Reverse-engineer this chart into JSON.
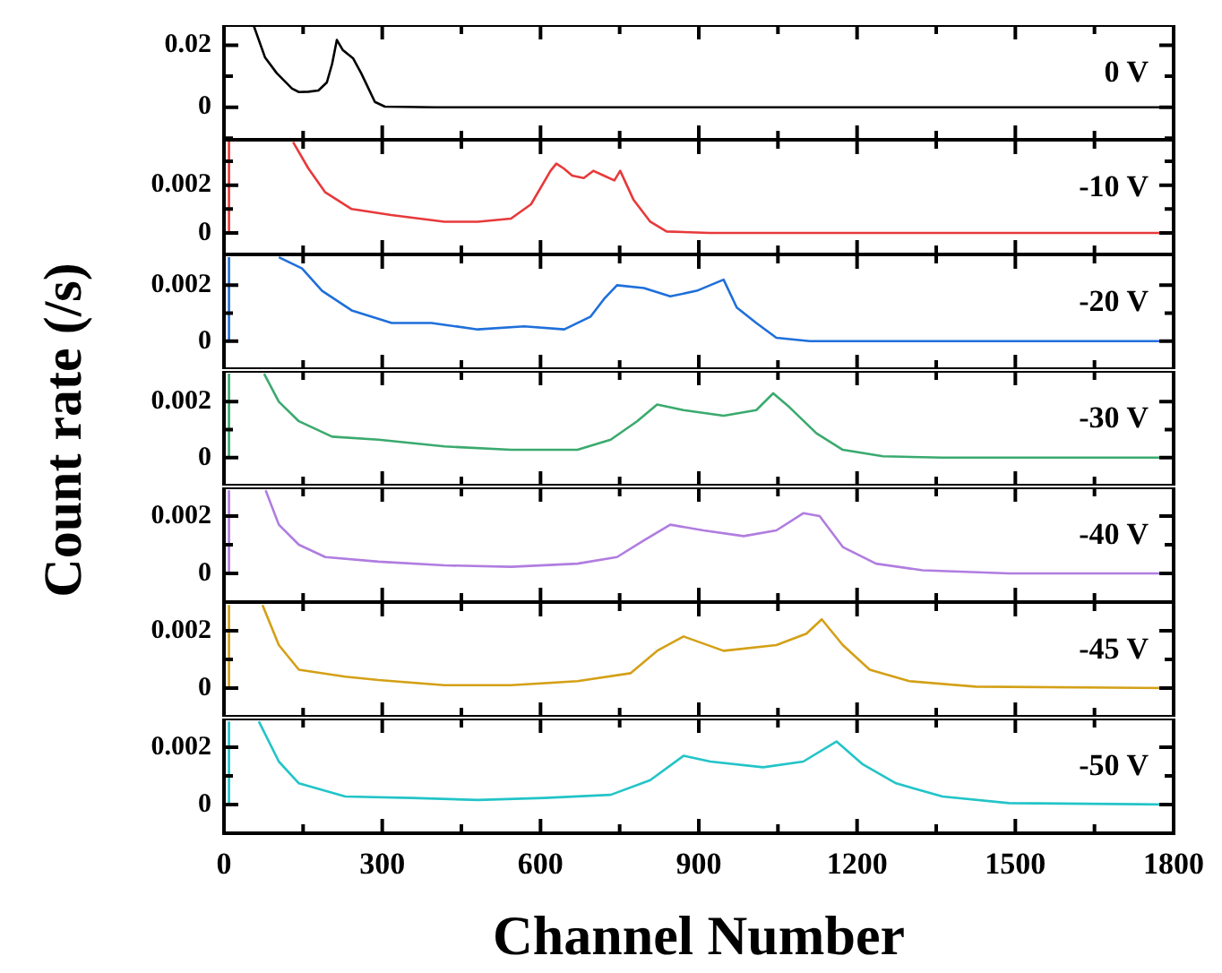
{
  "chart_data": [
    {
      "type": "line",
      "color": "#000000",
      "x": [
        56,
        78,
        100,
        129,
        142,
        160,
        179,
        195,
        205,
        214,
        225,
        245,
        260,
        271,
        286,
        305,
        400,
        1800
      ],
      "values": [
        0.0265,
        0.016,
        0.011,
        0.006,
        0.0049,
        0.005,
        0.0054,
        0.008,
        0.014,
        0.0217,
        0.0185,
        0.0157,
        0.011,
        0.0071,
        0.0017,
        0.0002,
        0,
        0
      ],
      "xlim": [
        0,
        1800
      ],
      "xticks": [
        0,
        {
          "value": 150,
          "label": null
        },
        300,
        {
          "value": 450,
          "label": null
        },
        600,
        {
          "value": 750,
          "label": null
        },
        900,
        {
          "value": 1050,
          "label": null
        },
        1200,
        {
          "value": 1350,
          "label": null
        },
        1500,
        {
          "value": 1650,
          "label": null
        },
        1800
      ],
      "ylim": [
        -0.0105,
        0.0265
      ],
      "yticks": [
        {
          "value": -0.01,
          "label": null
        },
        0,
        {
          "value": 0.01,
          "label": null
        },
        0.02
      ],
      "tick_labels": "y",
      "annotations": [
        "0 V"
      ]
    },
    {
      "type": "line",
      "color": "#e8393a",
      "x": [
        8,
        9,
        10,
        60,
        131,
        160,
        192,
        242,
        317,
        418,
        481,
        544,
        582,
        619,
        630,
        644,
        660,
        682,
        700,
        720,
        740,
        751,
        776,
        808,
        839,
        921,
        1800
      ],
      "values": [
        0,
        0,
        0.0039,
        null,
        0.0038,
        0.0027,
        0.0017,
        0.001,
        0.00075,
        0.00047,
        0.00047,
        0.0006,
        0.0012,
        0.0026,
        0.0029,
        0.0027,
        0.0024,
        0.0023,
        0.0026,
        0.0024,
        0.0022,
        0.0026,
        0.0014,
        0.00047,
        6e-05,
        0,
        0
      ],
      "xlim": [
        0,
        1800
      ],
      "xticks": [
        0,
        {
          "value": 150,
          "label": null
        },
        300,
        {
          "value": 450,
          "label": null
        },
        600,
        {
          "value": 750,
          "label": null
        },
        900,
        {
          "value": 1050,
          "label": null
        },
        1200,
        {
          "value": 1350,
          "label": null
        },
        1500,
        {
          "value": 1650,
          "label": null
        },
        1800
      ],
      "ylim": [
        -0.0009,
        0.0039
      ],
      "yticks": [
        0,
        {
          "value": 0.001,
          "label": null
        },
        0.002,
        {
          "value": 0.003,
          "label": null
        }
      ],
      "tick_labels": "y",
      "annotations": [
        "-10 V"
      ]
    },
    {
      "type": "line",
      "color": "#1f6fdb",
      "x": [
        8,
        9,
        10,
        50,
        104,
        148,
        186,
        242,
        318,
        393,
        481,
        569,
        645,
        695,
        720,
        745,
        796,
        846,
        896,
        947,
        972,
        1009,
        1047,
        1110,
        1800
      ],
      "values": [
        0,
        0,
        0.003,
        null,
        0.003,
        0.0026,
        0.0018,
        0.0011,
        0.00065,
        0.00065,
        0.00042,
        0.00053,
        0.00042,
        0.00088,
        0.0015,
        0.002,
        0.0019,
        0.0016,
        0.0018,
        0.0022,
        0.0012,
        0.00065,
        0.00012,
        0,
        0
      ],
      "xlim": [
        0,
        1800
      ],
      "xticks": [
        0,
        {
          "value": 150,
          "label": null
        },
        300,
        {
          "value": 450,
          "label": null
        },
        600,
        {
          "value": 750,
          "label": null
        },
        900,
        {
          "value": 1050,
          "label": null
        },
        1200,
        {
          "value": 1350,
          "label": null
        },
        1500,
        {
          "value": 1650,
          "label": null
        },
        1800
      ],
      "ylim": [
        -0.001,
        0.0031
      ],
      "yticks": [
        0,
        {
          "value": 0.001,
          "label": null
        },
        0.002
      ],
      "tick_labels": "y",
      "annotations": [
        "-20 V"
      ]
    },
    {
      "type": "line",
      "color": "#3aaa6e",
      "x": [
        8,
        9,
        10,
        40,
        76,
        104,
        142,
        205,
        293,
        418,
        544,
        670,
        733,
        783,
        821,
        871,
        947,
        1009,
        1041,
        1072,
        1123,
        1173,
        1249,
        1362,
        1800
      ],
      "values": [
        0,
        0,
        0.003,
        null,
        0.003,
        0.002,
        0.0013,
        0.00075,
        0.00064,
        0.0004,
        0.00028,
        0.00028,
        0.00064,
        0.0013,
        0.0019,
        0.0017,
        0.0015,
        0.0017,
        0.0023,
        0.0018,
        0.00087,
        0.00028,
        5e-05,
        0,
        0
      ],
      "xlim": [
        0,
        1800
      ],
      "xticks": [
        0,
        {
          "value": 150,
          "label": null
        },
        300,
        {
          "value": 450,
          "label": null
        },
        600,
        {
          "value": 750,
          "label": null
        },
        900,
        {
          "value": 1050,
          "label": null
        },
        1200,
        {
          "value": 1350,
          "label": null
        },
        1500,
        {
          "value": 1650,
          "label": null
        },
        1800
      ],
      "ylim": [
        -0.001,
        0.0031
      ],
      "yticks": [
        0,
        {
          "value": 0.001,
          "label": null
        },
        0.002
      ],
      "tick_labels": "y",
      "ylabel": "Count rate (/s)",
      "annotations": [
        "-30 V"
      ]
    },
    {
      "type": "line",
      "color": "#b07de0",
      "x": [
        8,
        9,
        10,
        40,
        79,
        104,
        142,
        192,
        293,
        418,
        544,
        670,
        745,
        796,
        846,
        909,
        985,
        1047,
        1098,
        1129,
        1173,
        1236,
        1324,
        1488,
        1800
      ],
      "values": [
        0,
        0,
        0.0029,
        null,
        0.0029,
        0.0017,
        0.001,
        0.00057,
        0.00041,
        0.00028,
        0.00023,
        0.00034,
        0.00057,
        0.00115,
        0.0017,
        0.0015,
        0.0013,
        0.0015,
        0.0021,
        0.002,
        0.00092,
        0.00034,
        0.00011,
        0,
        0
      ],
      "xlim": [
        0,
        1800
      ],
      "xticks": [
        0,
        {
          "value": 150,
          "label": null
        },
        300,
        {
          "value": 450,
          "label": null
        },
        600,
        {
          "value": 750,
          "label": null
        },
        900,
        {
          "value": 1050,
          "label": null
        },
        1200,
        {
          "value": 1350,
          "label": null
        },
        1500,
        {
          "value": 1650,
          "label": null
        },
        1800
      ],
      "ylim": [
        -0.001,
        0.003
      ],
      "yticks": [
        0,
        {
          "value": 0.001,
          "label": null
        },
        0.002
      ],
      "tick_labels": "y",
      "annotations": [
        "-40 V"
      ]
    },
    {
      "type": "line",
      "color": "#d4a017",
      "x": [
        8,
        9,
        10,
        40,
        73,
        104,
        142,
        230,
        293,
        418,
        544,
        670,
        771,
        821,
        871,
        947,
        1047,
        1104,
        1133,
        1173,
        1224,
        1299,
        1425,
        1800
      ],
      "values": [
        0,
        0,
        0.0029,
        null,
        0.0029,
        0.0015,
        0.00064,
        0.0004,
        0.00028,
        0.0001,
        0.0001,
        0.00024,
        0.00052,
        0.0013,
        0.0018,
        0.0013,
        0.0015,
        0.0019,
        0.0024,
        0.0015,
        0.00064,
        0.00024,
        5e-05,
        0
      ],
      "xlim": [
        0,
        1800
      ],
      "xticks": [
        0,
        {
          "value": 150,
          "label": null
        },
        300,
        {
          "value": 450,
          "label": null
        },
        600,
        {
          "value": 750,
          "label": null
        },
        900,
        {
          "value": 1050,
          "label": null
        },
        1200,
        {
          "value": 1350,
          "label": null
        },
        1500,
        {
          "value": 1650,
          "label": null
        },
        1800
      ],
      "ylim": [
        -0.001,
        0.003
      ],
      "yticks": [
        0,
        {
          "value": 0.001,
          "label": null
        },
        0.002
      ],
      "tick_labels": "y",
      "annotations": [
        "-45 V"
      ]
    },
    {
      "type": "line",
      "color": "#22c4c8",
      "x": [
        8,
        9,
        10,
        35,
        66,
        104,
        142,
        230,
        356,
        481,
        607,
        733,
        808,
        871,
        922,
        1022,
        1098,
        1161,
        1211,
        1274,
        1362,
        1488,
        1800
      ],
      "values": [
        0,
        0,
        0.0029,
        null,
        0.0029,
        0.0015,
        0.00074,
        0.00028,
        0.00023,
        0.00016,
        0.00023,
        0.00034,
        0.00085,
        0.0017,
        0.0015,
        0.0013,
        0.0015,
        0.0022,
        0.0014,
        0.00074,
        0.00028,
        5e-05,
        0
      ],
      "xlim": [
        0,
        1800
      ],
      "xticks": [
        0,
        {
          "value": 150,
          "label": null
        },
        300,
        {
          "value": 450,
          "label": null
        },
        600,
        {
          "value": 750,
          "label": null
        },
        900,
        {
          "value": 1050,
          "label": null
        },
        1200,
        {
          "value": 1350,
          "label": null
        },
        1500,
        {
          "value": 1650,
          "label": null
        },
        1800
      ],
      "ylim": [
        -0.001,
        0.003
      ],
      "yticks": [
        0,
        {
          "value": 0.001,
          "label": null
        },
        0.002
      ],
      "xlabel": "Channel Number",
      "annotations": [
        "-50 V"
      ]
    }
  ]
}
